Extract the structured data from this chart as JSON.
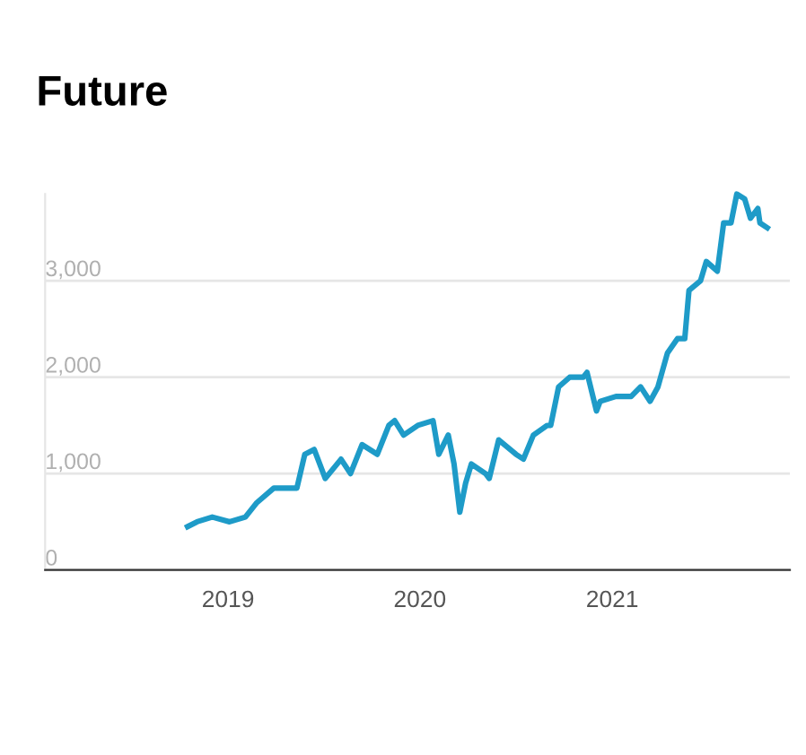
{
  "chart_data": {
    "type": "line",
    "title": "Future",
    "x": [
      "2018-10-16",
      "2018-11-03",
      "2018-12-02",
      "2019-01-04",
      "2019-02-03",
      "2019-02-25",
      "2019-03-29",
      "2019-05-12",
      "2019-05-27",
      "2019-06-14",
      "2019-07-05",
      "2019-08-04",
      "2019-08-22",
      "2019-09-13",
      "2019-10-12",
      "2019-11-03",
      "2019-11-14",
      "2019-12-01",
      "2019-12-28",
      "2020-01-26",
      "2020-02-06",
      "2020-02-24",
      "2020-03-06",
      "2020-03-17",
      "2020-03-28",
      "2020-04-08",
      "2020-05-05",
      "2020-05-12",
      "2020-05-30",
      "2020-07-02",
      "2020-07-16",
      "2020-08-04",
      "2020-08-30",
      "2020-09-06",
      "2020-09-21",
      "2020-10-12",
      "2020-11-07",
      "2020-11-14",
      "2020-12-02",
      "2020-12-09",
      "2021-01-08",
      "2021-02-06",
      "2021-02-24",
      "2021-03-14",
      "2021-03-29",
      "2021-04-16",
      "2021-05-05",
      "2021-05-19",
      "2021-05-27",
      "2021-06-18",
      "2021-06-29",
      "2021-07-20",
      "2021-08-01",
      "2021-08-15",
      "2021-08-26",
      "2021-09-10",
      "2021-09-21",
      "2021-10-05",
      "2021-10-09",
      "2021-10-23"
    ],
    "series": [
      {
        "color": "#1e9bc8",
        "values": [
          450,
          500,
          550,
          500,
          550,
          700,
          850,
          850,
          1200,
          1250,
          950,
          1150,
          1000,
          1300,
          1200,
          1500,
          1550,
          1400,
          1500,
          1550,
          1200,
          1400,
          1100,
          600,
          900,
          1100,
          1000,
          950,
          1350,
          1200,
          1150,
          1400,
          1500,
          1500,
          1900,
          2000,
          2000,
          2050,
          1650,
          1750,
          1800,
          1800,
          1900,
          1750,
          1900,
          2250,
          2400,
          2400,
          2900,
          3000,
          3200,
          3100,
          3600,
          3600,
          3900,
          3850,
          3650,
          3750,
          3600,
          3550
        ]
      }
    ],
    "xlim": [
      "2018-01-18",
      "2021-12-05"
    ],
    "xticks": [
      "2019",
      "2020",
      "2021"
    ],
    "yticks": [
      0,
      {
        "value": 1000,
        "label": "1,000"
      },
      {
        "value": 2000,
        "label": "2,000"
      },
      {
        "value": 3000,
        "label": "3,000"
      }
    ],
    "ylim": [
      0,
      3900
    ],
    "grid": "y"
  }
}
